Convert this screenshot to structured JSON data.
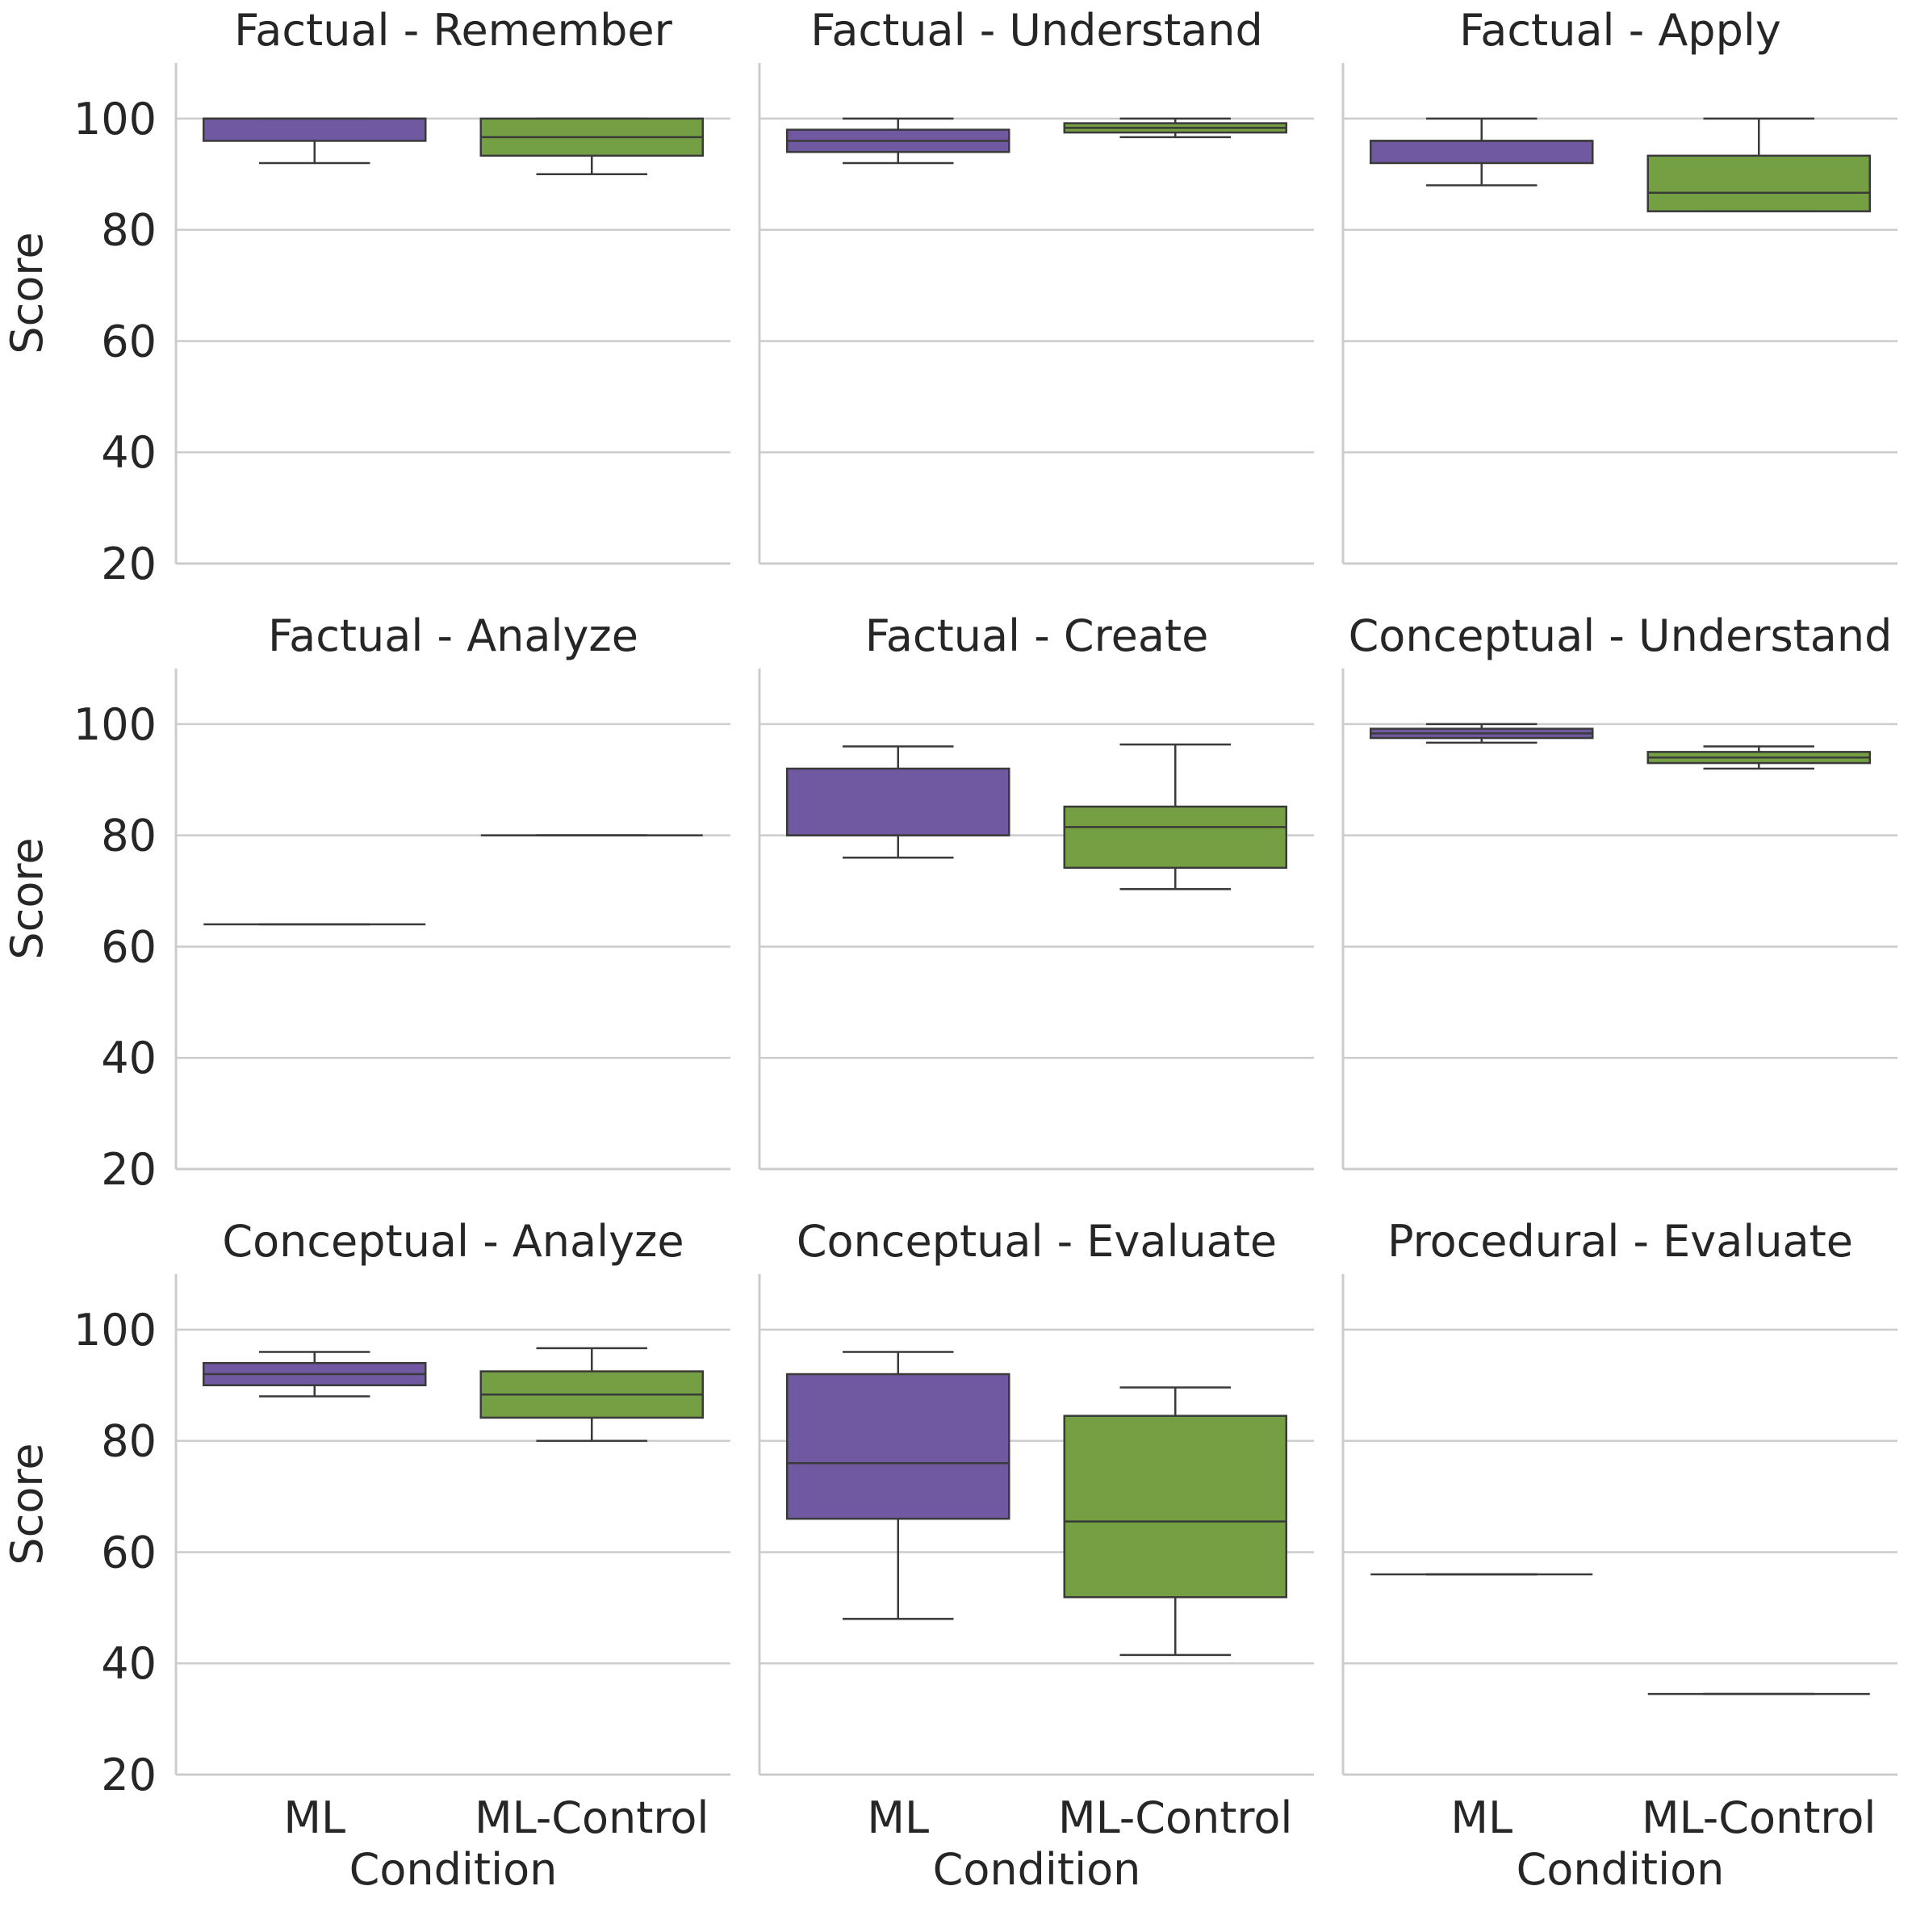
{
  "chart_data": {
    "type": "box",
    "layout": "3x3 facet grid",
    "ylabel": "Score",
    "xlabel": "Condition",
    "ylim": [
      20,
      110
    ],
    "yticks": [
      20,
      40,
      60,
      80,
      100
    ],
    "categories": [
      "ML",
      "ML-Control"
    ],
    "colors": {
      "ML": "#7059a0",
      "ML-Control": "#74a043",
      "line": "#3a3a3a",
      "grid": "#cccccc"
    },
    "grid": "horizontal",
    "panels": [
      {
        "title": "Factual - Remember",
        "boxes": [
          {
            "category": "ML",
            "whislo": 92,
            "q1": 96,
            "median": 100,
            "q3": 100,
            "whishi": 100
          },
          {
            "category": "ML-Control",
            "whislo": 90,
            "q1": 93.33,
            "median": 96.67,
            "q3": 100,
            "whishi": 100
          }
        ]
      },
      {
        "title": "Factual - Understand",
        "boxes": [
          {
            "category": "ML",
            "whislo": 92,
            "q1": 94,
            "median": 96,
            "q3": 98,
            "whishi": 100
          },
          {
            "category": "ML-Control",
            "whislo": 96.67,
            "q1": 97.5,
            "median": 98.33,
            "q3": 99.17,
            "whishi": 100
          }
        ]
      },
      {
        "title": "Factual - Apply",
        "boxes": [
          {
            "category": "ML",
            "whislo": 88,
            "q1": 92,
            "median": 96,
            "q3": 96,
            "whishi": 100
          },
          {
            "category": "ML-Control",
            "whislo": 83.33,
            "q1": 83.33,
            "median": 86.67,
            "q3": 93.33,
            "whishi": 100
          }
        ]
      },
      {
        "title": "Factual - Analyze",
        "boxes": [
          {
            "category": "ML",
            "whislo": 64,
            "q1": 64,
            "median": 64,
            "q3": 64,
            "whishi": 64
          },
          {
            "category": "ML-Control",
            "whislo": 80,
            "q1": 80,
            "median": 80,
            "q3": 80,
            "whishi": 80
          }
        ]
      },
      {
        "title": "Factual - Create",
        "boxes": [
          {
            "category": "ML",
            "whislo": 76,
            "q1": 80,
            "median": 80,
            "q3": 92,
            "whishi": 96
          },
          {
            "category": "ML-Control",
            "whislo": 70.33,
            "q1": 74.17,
            "median": 81.5,
            "q3": 85.17,
            "whishi": 96.33
          }
        ]
      },
      {
        "title": "Conceptual - Understand",
        "boxes": [
          {
            "category": "ML",
            "whislo": 96.67,
            "q1": 97.5,
            "median": 98.33,
            "q3": 99.17,
            "whishi": 100
          },
          {
            "category": "ML-Control",
            "whislo": 92,
            "q1": 93,
            "median": 94,
            "q3": 95,
            "whishi": 96
          }
        ]
      },
      {
        "title": "Conceptual - Analyze",
        "boxes": [
          {
            "category": "ML",
            "whislo": 88,
            "q1": 90,
            "median": 92,
            "q3": 94,
            "whishi": 96
          },
          {
            "category": "ML-Control",
            "whislo": 80,
            "q1": 84.17,
            "median": 88.33,
            "q3": 92.5,
            "whishi": 96.67
          }
        ]
      },
      {
        "title": "Conceptual - Evaluate",
        "boxes": [
          {
            "category": "ML",
            "whislo": 48,
            "q1": 66,
            "median": 76,
            "q3": 92,
            "whishi": 96
          },
          {
            "category": "ML-Control",
            "whislo": 41.5,
            "q1": 51.9,
            "median": 65.5,
            "q3": 84.5,
            "whishi": 89.6
          }
        ]
      },
      {
        "title": "Procedural - Evaluate",
        "boxes": [
          {
            "category": "ML",
            "whislo": 56,
            "q1": 56,
            "median": 56,
            "q3": 56,
            "whishi": 56
          },
          {
            "category": "ML-Control",
            "whislo": 34.5,
            "q1": 34.5,
            "median": 34.5,
            "q3": 34.5,
            "whishi": 34.5
          }
        ]
      }
    ]
  }
}
